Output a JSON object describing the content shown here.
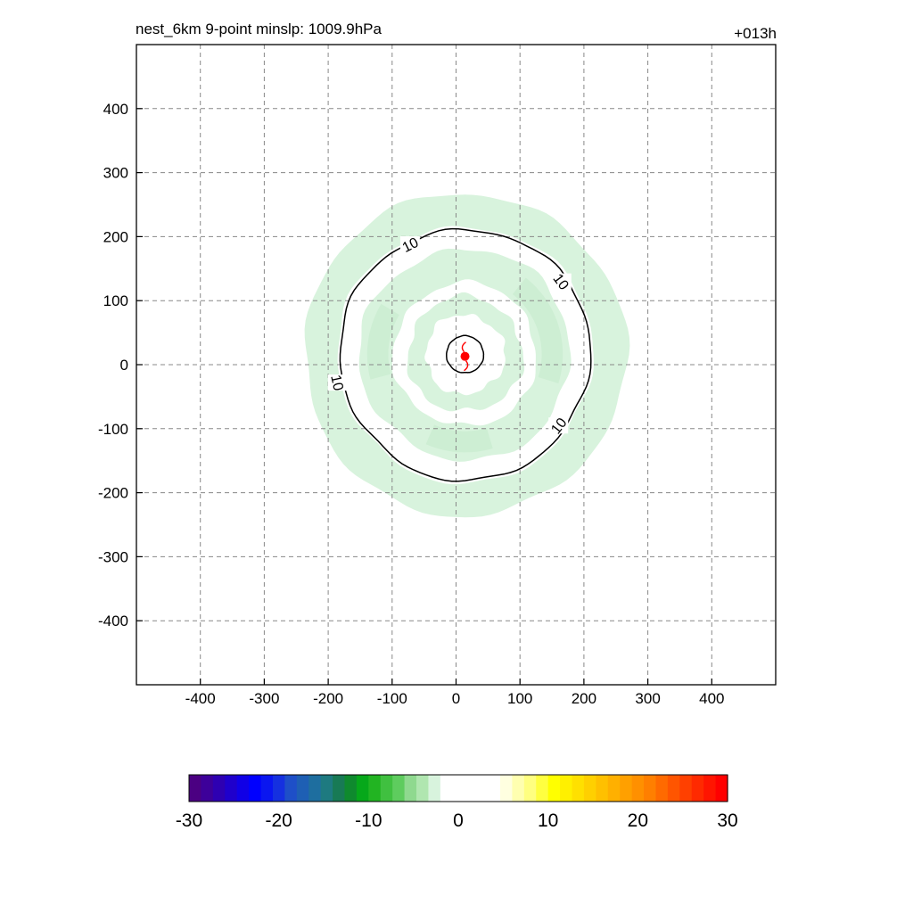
{
  "chart_data": {
    "type": "heatmap",
    "title": "nest_6km  9-point minslp: 1009.9hPa",
    "time_label": "+013h",
    "xlabel": "",
    "ylabel": "",
    "xlim": [
      -500,
      500
    ],
    "ylim": [
      -500,
      500
    ],
    "x_ticks": [
      -400,
      -300,
      -200,
      -100,
      0,
      100,
      200,
      300,
      400
    ],
    "y_ticks": [
      -400,
      -300,
      -200,
      -100,
      0,
      100,
      200,
      300,
      400
    ],
    "grid": true,
    "storm_center": [
      14,
      16
    ],
    "fill_color": "#d8f3dd",
    "fill_color_dark": "#cdeed3",
    "shaded_rings": [
      {
        "name": "outer-ring",
        "outer_radius": 252,
        "inner_radius": 200
      },
      {
        "name": "middle-ring",
        "outer_radius": 165,
        "inner_radius": 112
      },
      {
        "name": "inner-ring",
        "outer_radius": 90,
        "inner_radius": 62
      }
    ],
    "contours": [
      {
        "name": "contour-10",
        "level": 10,
        "radius": 196,
        "labels": [
          {
            "text": "10",
            "x": -72,
            "y": 188
          },
          {
            "text": "10",
            "x": 165,
            "y": 130
          },
          {
            "text": "10",
            "x": -185,
            "y": -28
          },
          {
            "text": "10",
            "x": 160,
            "y": -95
          }
        ]
      },
      {
        "name": "contour-inner",
        "level": null,
        "radius": 29,
        "labels": []
      }
    ],
    "colorbar": {
      "min": -30,
      "max": 30,
      "tick_labels": [
        "-30",
        "-20",
        "-10",
        "0",
        "10",
        "20",
        "30"
      ],
      "tick_values": [
        -30,
        -20,
        -10,
        0,
        10,
        20,
        30
      ],
      "colors": [
        "#4b0082",
        "#3d009a",
        "#2e00b2",
        "#1f00cc",
        "#1000e6",
        "#0000ff",
        "#0a16f0",
        "#1530e0",
        "#1e4fc8",
        "#1e5fb4",
        "#1e6e9f",
        "#1e7a80",
        "#187a55",
        "#0f8a2e",
        "#06a81a",
        "#22b422",
        "#40c040",
        "#5ecc5e",
        "#8fd98f",
        "#b0e6b0",
        "#d8f3dd",
        "#ffffff",
        "#ffffff",
        "#ffffff",
        "#ffffff",
        "#ffffff",
        "#ffffe0",
        "#ffffb0",
        "#ffff80",
        "#ffff40",
        "#ffff00",
        "#fff000",
        "#ffe000",
        "#ffd000",
        "#ffc000",
        "#ffb000",
        "#ffa000",
        "#ff9000",
        "#ff7f00",
        "#ff6a00",
        "#ff5500",
        "#ff4000",
        "#ff2a00",
        "#ff1500",
        "#ff0000"
      ]
    },
    "marker": {
      "symbol": "tropical-cyclone",
      "color": "#ff0000"
    }
  }
}
